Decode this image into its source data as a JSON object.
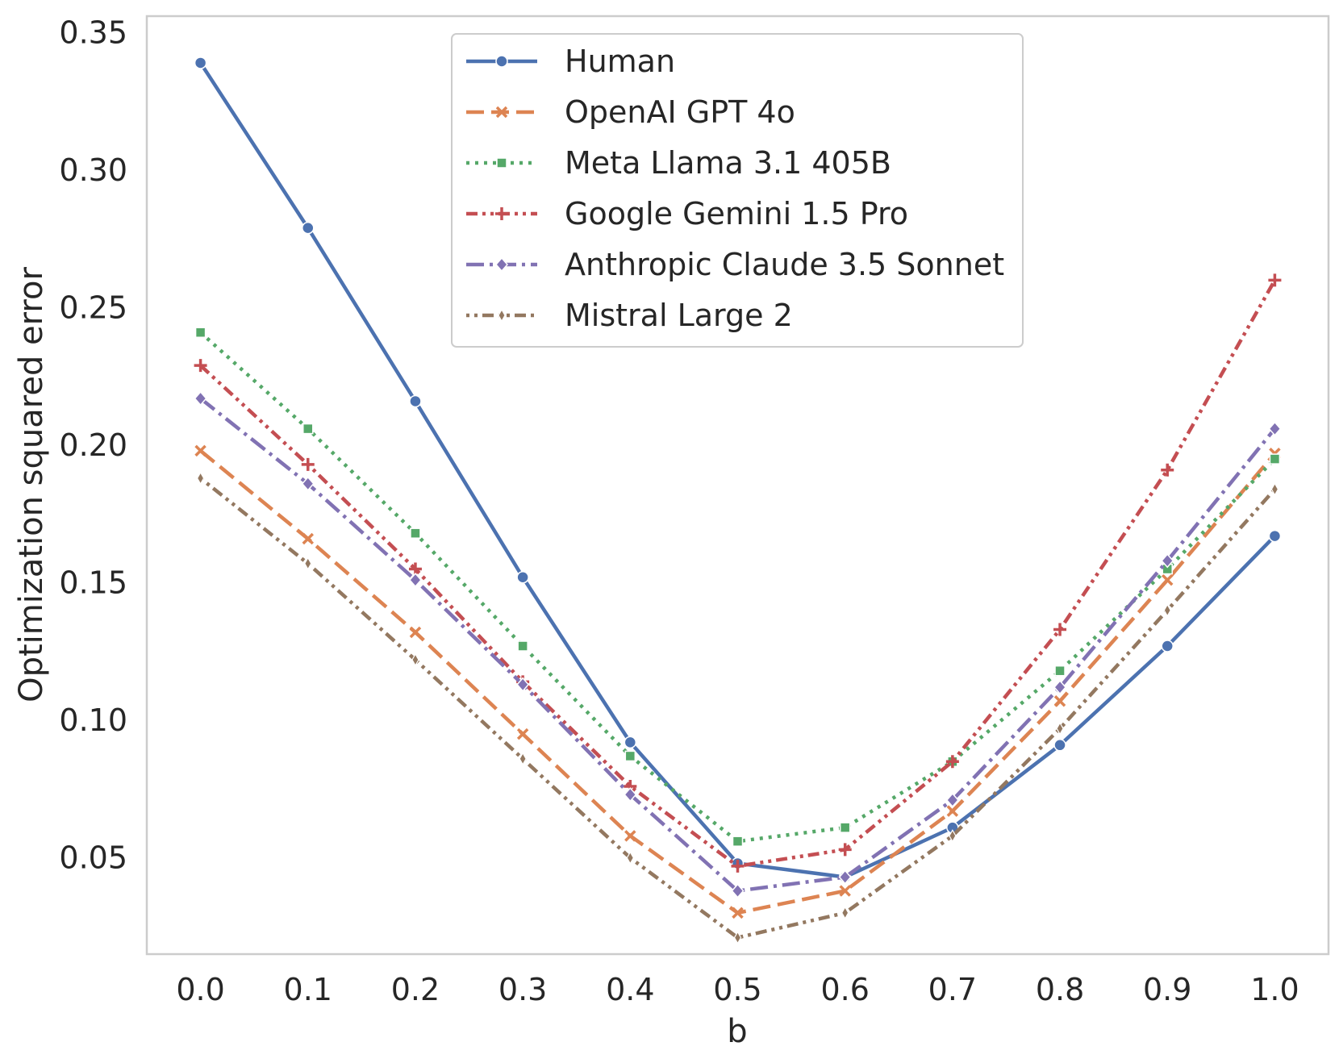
{
  "chart_data": {
    "type": "line",
    "title": "",
    "xlabel": "b",
    "ylabel": "Optimization squared error",
    "x": [
      0.0,
      0.1,
      0.2,
      0.3,
      0.4,
      0.5,
      0.6,
      0.7,
      0.8,
      0.9,
      1.0
    ],
    "x_tick_labels": [
      "0.0",
      "0.1",
      "0.2",
      "0.3",
      "0.4",
      "0.5",
      "0.6",
      "0.7",
      "0.8",
      "0.9",
      "1.0"
    ],
    "y_ticks": [
      0.05,
      0.1,
      0.15,
      0.2,
      0.25,
      0.3,
      0.35
    ],
    "y_tick_labels": [
      "0.05",
      "0.10",
      "0.15",
      "0.20",
      "0.25",
      "0.30",
      "0.35"
    ],
    "xlim": [
      -0.05,
      1.05
    ],
    "ylim": [
      0.015,
      0.356
    ],
    "grid": false,
    "legend_position": "top-center",
    "series": [
      {
        "name": "Human",
        "color": "#4c72b0",
        "marker": "circle",
        "dash": "solid",
        "values": [
          0.339,
          0.279,
          0.216,
          0.152,
          0.092,
          0.048,
          0.043,
          0.061,
          0.091,
          0.127,
          0.167
        ]
      },
      {
        "name": "OpenAI GPT 4o",
        "color": "#dd8452",
        "marker": "x",
        "dash": "dashed",
        "values": [
          0.198,
          0.166,
          0.132,
          0.095,
          0.058,
          0.03,
          0.038,
          0.067,
          0.107,
          0.151,
          0.197
        ]
      },
      {
        "name": "Meta Llama 3.1 405B",
        "color": "#55a868",
        "marker": "square",
        "dash": "dotted",
        "values": [
          0.241,
          0.206,
          0.168,
          0.127,
          0.087,
          0.056,
          0.061,
          0.085,
          0.118,
          0.155,
          0.195
        ]
      },
      {
        "name": "Google Gemini 1.5 Pro",
        "color": "#c44e52",
        "marker": "plus",
        "dash": "dashdotdot",
        "values": [
          0.229,
          0.193,
          0.155,
          0.114,
          0.076,
          0.047,
          0.053,
          0.085,
          0.133,
          0.191,
          0.26
        ]
      },
      {
        "name": "Anthropic Claude 3.5 Sonnet",
        "color": "#8172b3",
        "marker": "diamond",
        "dash": "dashdot",
        "values": [
          0.217,
          0.186,
          0.151,
          0.113,
          0.073,
          0.038,
          0.043,
          0.071,
          0.112,
          0.158,
          0.206
        ]
      },
      {
        "name": "Mistral Large 2",
        "color": "#937860",
        "marker": "thin-diamond",
        "dash": "dotdotdash",
        "values": [
          0.188,
          0.157,
          0.122,
          0.086,
          0.05,
          0.021,
          0.03,
          0.058,
          0.097,
          0.14,
          0.184
        ]
      }
    ]
  }
}
